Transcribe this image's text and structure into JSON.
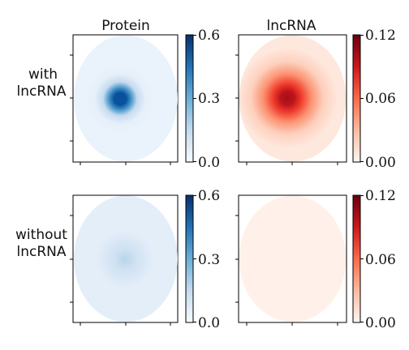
{
  "chart_data": {
    "type": "heatmap",
    "column_titles": [
      "Protein",
      "lncRNA"
    ],
    "row_labels": [
      [
        "with",
        "lncRNA"
      ],
      [
        "without",
        "lncRNA"
      ]
    ],
    "colormaps": {
      "Protein": "Blues",
      "lncRNA": "Reds"
    },
    "colorbars": {
      "Protein": {
        "ticks": [
          "0.0",
          "0.3",
          "0.6"
        ],
        "range": [
          0,
          0.6
        ]
      },
      "lncRNA": {
        "ticks": [
          "0.00",
          "0.06",
          "0.12"
        ],
        "range": [
          0,
          0.12
        ]
      }
    },
    "panels": [
      {
        "row": "with lncRNA",
        "quantity": "Protein",
        "domain": "ellipse",
        "background": 0.03,
        "spot_peak": 0.58
      },
      {
        "row": "with lncRNA",
        "quantity": "lncRNA",
        "domain": "ellipse",
        "background": 0.012,
        "spot_peak": 0.118
      },
      {
        "row": "without lncRNA",
        "quantity": "Protein",
        "domain": "ellipse",
        "background": 0.045,
        "spot_peak": 0.12
      },
      {
        "row": "without lncRNA",
        "quantity": "lncRNA",
        "domain": "ellipse",
        "background": 0.004,
        "spot_peak": 0.004
      }
    ]
  }
}
